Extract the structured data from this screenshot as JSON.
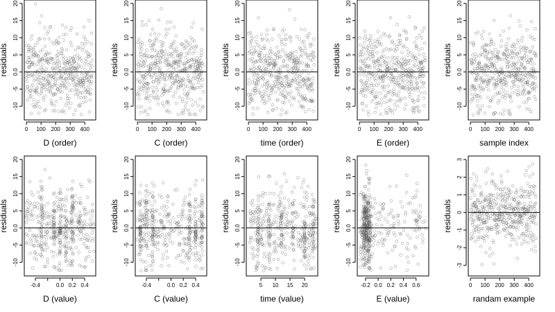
{
  "chart_data": [
    {
      "type": "scatter",
      "xlabel": "D (order)",
      "ylabel": "residuals",
      "xlim": [
        -15,
        475
      ],
      "ylim": [
        -14,
        21
      ],
      "xticks": [
        0,
        100,
        200,
        300,
        400
      ],
      "xtick_labels": [
        "0",
        "100",
        "200",
        "300",
        "400"
      ],
      "yticks": [
        -10,
        -5,
        0,
        5,
        10,
        15,
        20
      ],
      "ytick_labels": [
        "-10",
        "-5",
        "0.0",
        "5",
        "10",
        "15",
        "20"
      ],
      "hline": 0,
      "gen": {
        "kind": "order",
        "n": 450,
        "xmin": 1,
        "xmax": 450,
        "sd": 6,
        "seed": 11
      }
    },
    {
      "type": "scatter",
      "xlabel": "C (order)",
      "ylabel": "residuals",
      "xlim": [
        -15,
        475
      ],
      "ylim": [
        -14,
        21
      ],
      "xticks": [
        0,
        100,
        200,
        300,
        400
      ],
      "xtick_labels": [
        "0",
        "100",
        "200",
        "300",
        "400"
      ],
      "yticks": [
        -10,
        -5,
        0,
        5,
        10,
        15,
        20
      ],
      "ytick_labels": [
        "-10",
        "-5",
        "0.0",
        "5",
        "10",
        "15",
        "20"
      ],
      "hline": 0,
      "gen": {
        "kind": "order",
        "n": 450,
        "xmin": 1,
        "xmax": 450,
        "sd": 6,
        "seed": 23
      }
    },
    {
      "type": "scatter",
      "xlabel": "time (order)",
      "ylabel": "residuals",
      "xlim": [
        -15,
        475
      ],
      "ylim": [
        -14,
        21
      ],
      "xticks": [
        0,
        100,
        200,
        300,
        400
      ],
      "xtick_labels": [
        "0",
        "100",
        "200",
        "300",
        "400"
      ],
      "yticks": [
        -10,
        -5,
        0,
        5,
        10,
        15,
        20
      ],
      "ytick_labels": [
        "-10",
        "-5",
        "0.0",
        "5",
        "10",
        "15",
        "20"
      ],
      "hline": 0,
      "gen": {
        "kind": "order",
        "n": 450,
        "xmin": 1,
        "xmax": 450,
        "sd": 6,
        "seed": 37
      }
    },
    {
      "type": "scatter",
      "xlabel": "E (order)",
      "ylabel": "residuals",
      "xlim": [
        -15,
        475
      ],
      "ylim": [
        -14,
        21
      ],
      "xticks": [
        0,
        100,
        200,
        300,
        400
      ],
      "xtick_labels": [
        "0",
        "100",
        "200",
        "300",
        "400"
      ],
      "yticks": [
        -10,
        -5,
        0,
        5,
        10,
        15,
        20
      ],
      "ytick_labels": [
        "-10",
        "-5",
        "0.0",
        "5",
        "10",
        "15",
        "20"
      ],
      "hline": 0,
      "gen": {
        "kind": "order",
        "n": 450,
        "xmin": 1,
        "xmax": 450,
        "sd": 6,
        "seed": 41
      }
    },
    {
      "type": "scatter",
      "xlabel": "sample index",
      "ylabel": "residuals",
      "xlim": [
        -15,
        475
      ],
      "ylim": [
        -14,
        21
      ],
      "xticks": [
        0,
        100,
        200,
        300,
        400
      ],
      "xtick_labels": [
        "0",
        "100",
        "200",
        "300",
        "400"
      ],
      "yticks": [
        -10,
        -5,
        0,
        5,
        10,
        15,
        20
      ],
      "ytick_labels": [
        "-10",
        "-5",
        "0.0",
        "5",
        "10",
        "15",
        "20"
      ],
      "hline": 0,
      "gen": {
        "kind": "order",
        "n": 450,
        "xmin": 1,
        "xmax": 450,
        "sd": 6,
        "seed": 53
      }
    },
    {
      "type": "scatter",
      "xlabel": "D (value)",
      "ylabel": "residuals",
      "xlim": [
        -0.58,
        0.58
      ],
      "ylim": [
        -14,
        21
      ],
      "xticks": [
        -0.4,
        -0.2,
        0,
        0.2,
        0.4
      ],
      "xtick_labels": [
        "-0.4",
        "",
        "0.0",
        "0.2",
        "0.4"
      ],
      "yticks": [
        -10,
        -5,
        0,
        5,
        10,
        15,
        20
      ],
      "ytick_labels": [
        "-10",
        "-5",
        "0.0",
        "5",
        "10",
        "15",
        "20"
      ],
      "hline": 0,
      "gen": {
        "kind": "uniform",
        "n": 450,
        "xmin": -0.55,
        "xmax": 0.55,
        "sd": 6,
        "seed": 61,
        "clusters": [
          -0.3,
          -0.1,
          0.0,
          0.1,
          0.2
        ],
        "cluster_frac": 0.35,
        "cluster_spread": 0.008
      }
    },
    {
      "type": "scatter",
      "xlabel": "C (value)",
      "ylabel": "residuals",
      "xlim": [
        -0.58,
        0.58
      ],
      "ylim": [
        -14,
        21
      ],
      "xticks": [
        -0.4,
        -0.2,
        0,
        0.2,
        0.4
      ],
      "xtick_labels": [
        "-0.4",
        "",
        "0.0",
        "0.2",
        "0.4"
      ],
      "yticks": [
        -10,
        -5,
        0,
        5,
        10,
        15,
        20
      ],
      "ytick_labels": [
        "-10",
        "-5",
        "0.0",
        "5",
        "10",
        "15",
        "20"
      ],
      "hline": 0,
      "gen": {
        "kind": "uniform",
        "n": 450,
        "xmin": -0.55,
        "xmax": 0.55,
        "sd": 6,
        "seed": 71,
        "clusters": [
          -0.5,
          -0.4,
          -0.3,
          0.3,
          0.4,
          0.5
        ],
        "cluster_frac": 0.45,
        "cluster_spread": 0.006
      }
    },
    {
      "type": "scatter",
      "xlabel": "time (value)",
      "ylabel": "residuals",
      "xlim": [
        0,
        24.5
      ],
      "ylim": [
        -14,
        21
      ],
      "xticks": [
        5,
        10,
        15,
        20
      ],
      "xtick_labels": [
        "5",
        "10",
        "15",
        "20"
      ],
      "yticks": [
        -10,
        -5,
        0,
        5,
        10,
        15,
        20
      ],
      "ytick_labels": [
        "-10",
        "-5",
        "0.0",
        "5",
        "10",
        "15",
        "20"
      ],
      "hline": 0,
      "gen": {
        "kind": "uniform",
        "n": 450,
        "xmin": 1,
        "xmax": 24,
        "sd": 6,
        "seed": 83,
        "clusters": [
          4,
          8,
          12,
          16,
          20,
          23
        ],
        "cluster_frac": 0.35,
        "cluster_spread": 0.15
      }
    },
    {
      "type": "scatter",
      "xlabel": "E (value)",
      "ylabel": "residuals",
      "xlim": [
        -0.33,
        0.8
      ],
      "ylim": [
        -14,
        21
      ],
      "xticks": [
        -0.2,
        0,
        0.2,
        0.4,
        0.6
      ],
      "xtick_labels": [
        "-0.2",
        "0.0",
        "0.2",
        "0.4",
        "0.6"
      ],
      "yticks": [
        -10,
        -5,
        0,
        5,
        10,
        15,
        20
      ],
      "ytick_labels": [
        "-10",
        "-5",
        "0.0",
        "5",
        "10",
        "15",
        "20"
      ],
      "hline": 0,
      "gen": {
        "kind": "skew",
        "n": 450,
        "xmin": -0.28,
        "xmax": 0.75,
        "sd": 6,
        "seed": 97,
        "clusters": [
          -0.22,
          -0.18,
          -0.14
        ],
        "cluster_frac": 0.6,
        "cluster_spread": 0.012
      }
    },
    {
      "type": "scatter",
      "xlabel": "randam example",
      "ylabel": "residuals",
      "xlim": [
        -15,
        475
      ],
      "ylim": [
        -3.6,
        3.2
      ],
      "xticks": [
        0,
        100,
        200,
        300,
        400
      ],
      "xtick_labels": [
        "0",
        "100",
        "200",
        "300",
        "400"
      ],
      "yticks": [
        -3,
        -2,
        -1,
        0,
        1,
        2,
        3
      ],
      "ytick_labels": [
        "-3",
        "-2",
        "-1",
        "0",
        "1",
        "2",
        "3"
      ],
      "hline": 0,
      "gen": {
        "kind": "order",
        "n": 450,
        "xmin": 1,
        "xmax": 450,
        "sd": 1,
        "seed": 109
      }
    }
  ]
}
